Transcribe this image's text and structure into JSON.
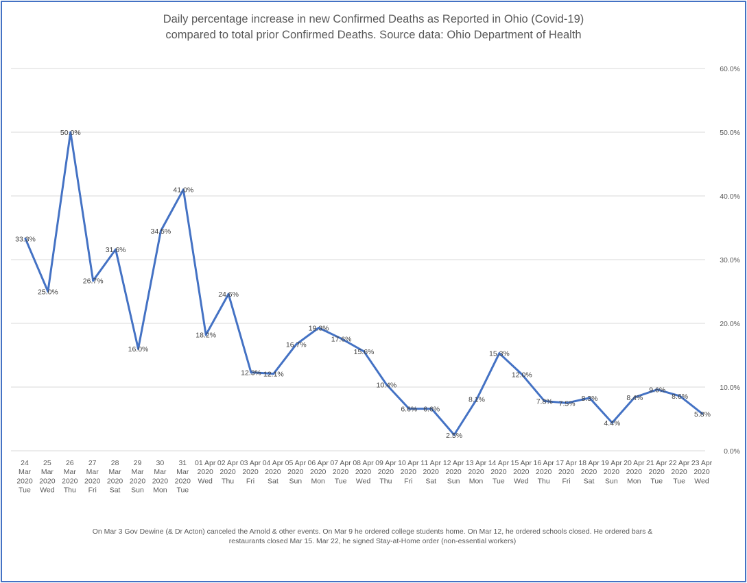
{
  "chart_data": {
    "type": "line",
    "title": "Daily percentage increase in new Confirmed Deaths as Reported in Ohio (Covid-19) compared to total prior Confirmed Deaths. Source data: Ohio Department of Health",
    "title_lines": [
      "Daily percentage increase in new Confirmed Deaths as Reported in Ohio (Covid-19)",
      "compared to total prior Confirmed Deaths. Source data: Ohio Department of Health"
    ],
    "xlabel": "",
    "ylabel": "",
    "ylim": [
      0,
      60
    ],
    "yticks": [
      "0.0%",
      "10.0%",
      "20.0%",
      "30.0%",
      "40.0%",
      "50.0%",
      "60.0%"
    ],
    "y_axis_side": "right",
    "grid": true,
    "legend": "none",
    "categories": [
      [
        "24",
        "Mar",
        "2020",
        "Tue"
      ],
      [
        "25",
        "Mar",
        "2020",
        "Wed"
      ],
      [
        "26",
        "Mar",
        "2020",
        "Thu"
      ],
      [
        "27",
        "Mar",
        "2020",
        "Fri"
      ],
      [
        "28",
        "Mar",
        "2020",
        "Sat"
      ],
      [
        "29",
        "Mar",
        "2020",
        "Sun"
      ],
      [
        "30",
        "Mar",
        "2020",
        "Mon"
      ],
      [
        "31",
        "Mar",
        "2020",
        "Tue"
      ],
      [
        "01 Apr",
        "2020",
        "Wed"
      ],
      [
        "02 Apr",
        "2020",
        "Thu"
      ],
      [
        "03 Apr",
        "2020",
        "Fri"
      ],
      [
        "04 Apr",
        "2020",
        "Sat"
      ],
      [
        "05 Apr",
        "2020",
        "Sun"
      ],
      [
        "06 Apr",
        "2020",
        "Mon"
      ],
      [
        "07 Apr",
        "2020",
        "Tue"
      ],
      [
        "08 Apr",
        "2020",
        "Wed"
      ],
      [
        "09 Apr",
        "2020",
        "Thu"
      ],
      [
        "10 Apr",
        "2020",
        "Fri"
      ],
      [
        "11 Apr",
        "2020",
        "Sat"
      ],
      [
        "12 Apr",
        "2020",
        "Sun"
      ],
      [
        "13 Apr",
        "2020",
        "Mon"
      ],
      [
        "14 Apr",
        "2020",
        "Tue"
      ],
      [
        "15 Apr",
        "2020",
        "Wed"
      ],
      [
        "16 Apr",
        "2020",
        "Thu"
      ],
      [
        "17 Apr",
        "2020",
        "Fri"
      ],
      [
        "18 Apr",
        "2020",
        "Sat"
      ],
      [
        "19 Apr",
        "2020",
        "Sun"
      ],
      [
        "20 Apr",
        "2020",
        "Mon"
      ],
      [
        "21 Apr",
        "2020",
        "Tue"
      ],
      [
        "22 Apr",
        "2020",
        "Tue"
      ],
      [
        "23 Apr",
        "2020",
        "Wed"
      ]
    ],
    "series": [
      {
        "values": [
          33.3,
          25.0,
          50.0,
          26.7,
          31.6,
          16.0,
          34.5,
          41.0,
          18.2,
          24.6,
          12.3,
          12.1,
          16.7,
          19.3,
          17.6,
          15.6,
          10.4,
          6.6,
          6.6,
          2.5,
          8.1,
          15.3,
          12.0,
          7.8,
          7.5,
          8.3,
          4.4,
          8.4,
          9.6,
          8.6,
          5.8
        ],
        "labels": [
          "33.3%",
          "25.0%",
          "50.0%",
          "26.7%",
          "31.6%",
          "16.0%",
          "34.5%",
          "41.0%",
          "18.2%",
          "24.6%",
          "12.3%",
          "12.1%",
          "16.7%",
          "19.3%",
          "17.6%",
          "15.6%",
          "10.4%",
          "6.6%",
          "6.6%",
          "2.5%",
          "8.1%",
          "15.3%",
          "12.0%",
          "7.8%",
          "7.5%",
          "8.3%",
          "4.4%",
          "8.4%",
          "9.6%",
          "8.6%",
          "5.8%"
        ],
        "color": "#4472c4"
      }
    ],
    "footnote": [
      "On Mar 3 Gov Dewine (& Dr Acton) canceled the Arnold & other events. On Mar 9 he ordered college students home. On Mar 12, he ordered schools closed. He ordered bars &",
      "restaurants closed Mar 15. Mar 22, he signed Stay-at-Home order (non-essential workers)"
    ]
  },
  "colors": {
    "series": "#4472c4",
    "border": "#4472c4",
    "grid": "#d9d9d9",
    "text": "#595959"
  }
}
